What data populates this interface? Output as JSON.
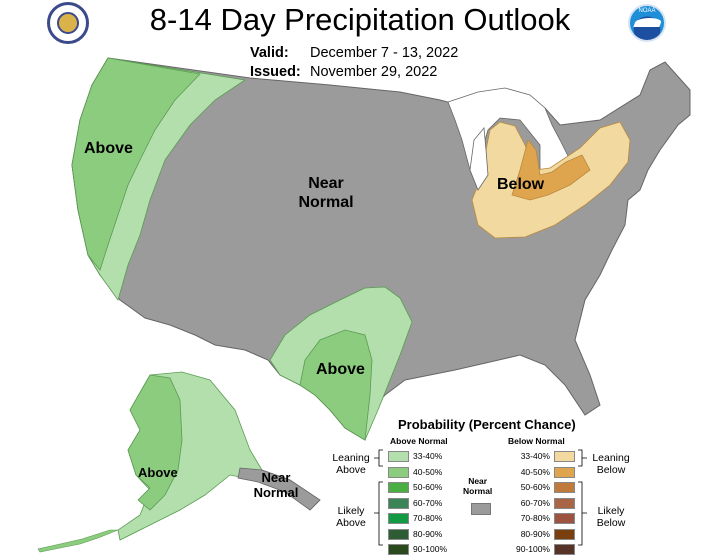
{
  "header": {
    "title": "8-14 Day Precipitation Outlook",
    "valid_label": "Valid:",
    "valid_dates": "December 7 - 13, 2022",
    "issued_label": "Issued:",
    "issued_date": "November 29, 2022"
  },
  "logos": {
    "left": "department-of-commerce-seal",
    "right_text": "NOAA"
  },
  "map_labels": {
    "west_above": "Above",
    "central_near_line1": "Near",
    "central_near_line2": "Normal",
    "great_lakes_below": "Below",
    "texas_above": "Above",
    "alaska_above": "Above",
    "alaska_near_line1": "Near",
    "alaska_near_line2": "Normal"
  },
  "legend": {
    "title": "Probability (Percent Chance)",
    "above_header": "Above Normal",
    "below_header": "Below Normal",
    "near_line1": "Near",
    "near_line2": "Normal",
    "leaning_above_1": "Leaning",
    "leaning_above_2": "Above",
    "likely_above_1": "Likely",
    "likely_above_2": "Above",
    "leaning_below_1": "Leaning",
    "leaning_below_2": "Below",
    "likely_below_1": "Likely",
    "likely_below_2": "Below",
    "above_rows": [
      "33-40%",
      "40-50%",
      "50-60%",
      "60-70%",
      "70-80%",
      "80-90%",
      "90-100%"
    ],
    "below_rows": [
      "33-40%",
      "40-50%",
      "50-60%",
      "60-70%",
      "70-80%",
      "80-90%",
      "90-100%"
    ]
  },
  "colors": {
    "above": [
      "#b3dfad",
      "#8ccc7e",
      "#4aae43",
      "#3a8457",
      "#119944",
      "#2e5d35",
      "#2a4a1e"
    ],
    "below": [
      "#f2d9a0",
      "#dfa54e",
      "#c07a3c",
      "#a86647",
      "#9c5441",
      "#7a3f0f",
      "#553427"
    ],
    "near": "#9b9b9b",
    "land": "#9b9b9b"
  }
}
